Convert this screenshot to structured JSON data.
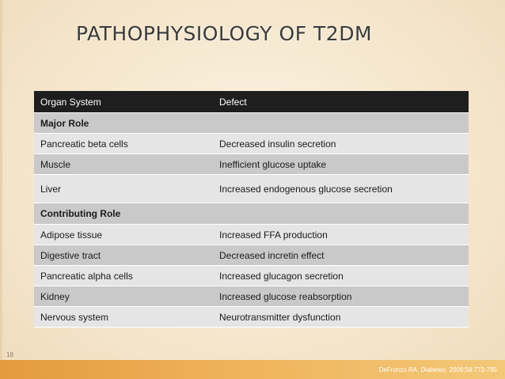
{
  "slide": {
    "title": "PATHOPHYSIOLOGY OF T2DM",
    "number": "18",
    "citation": {
      "authors": "DeFronzo RA. ",
      "journal": "Diabetes",
      "details": ". 2009;58:773-795"
    }
  },
  "table": {
    "headers": [
      "Organ System",
      "Defect"
    ],
    "rows": [
      {
        "organ": "Major Role",
        "defect": "",
        "section": true
      },
      {
        "organ": "Pancreatic beta cells",
        "defect": "Decreased insulin secretion"
      },
      {
        "organ": "Muscle",
        "defect": "Inefficient glucose uptake"
      },
      {
        "organ": "Liver",
        "defect": "Increased endogenous glucose secretion"
      },
      {
        "organ": "Contributing Role",
        "defect": "",
        "section": true
      },
      {
        "organ": "Adipose tissue",
        "defect": "Increased FFA production"
      },
      {
        "organ": "Digestive tract",
        "defect": "Decreased incretin effect"
      },
      {
        "organ": "Pancreatic alpha cells",
        "defect": "Increased glucagon secretion"
      },
      {
        "organ": "Kidney",
        "defect": "Increased glucose reabsorption"
      },
      {
        "organ": "Nervous system",
        "defect": "Neurotransmitter dysfunction"
      }
    ]
  }
}
